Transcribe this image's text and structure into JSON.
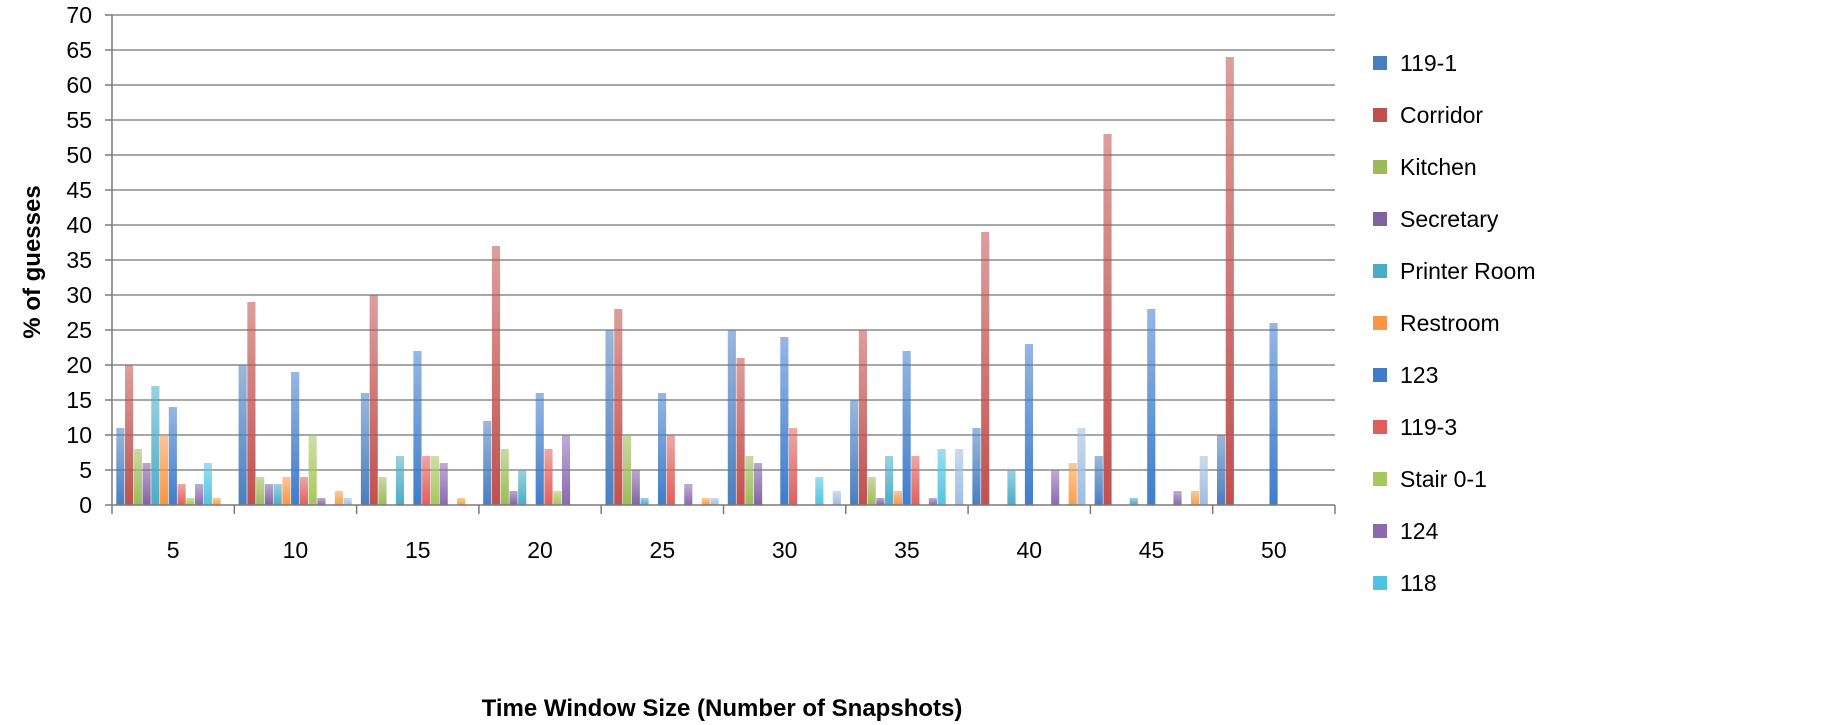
{
  "chart_data": {
    "type": "bar",
    "title": "",
    "xlabel": "Time Window Size (Number of Snapshots)",
    "ylabel": "% of guesses",
    "ylim": [
      0,
      70
    ],
    "yticks": [
      0,
      5,
      10,
      15,
      20,
      25,
      30,
      35,
      40,
      45,
      50,
      55,
      60,
      65,
      70
    ],
    "grid": true,
    "legend_position": "right",
    "categories": [
      "5",
      "10",
      "15",
      "20",
      "25",
      "30",
      "35",
      "40",
      "45",
      "50"
    ],
    "series": [
      {
        "name": "119-1",
        "color": "#4a7ebf",
        "values": [
          11,
          20,
          16,
          12,
          25,
          25,
          15,
          11,
          7,
          10
        ]
      },
      {
        "name": "Corridor",
        "color": "#c0504d",
        "values": [
          20,
          29,
          30,
          37,
          28,
          21,
          25,
          39,
          53,
          64
        ]
      },
      {
        "name": "Kitchen",
        "color": "#9bbb59",
        "values": [
          8,
          4,
          4,
          8,
          10,
          7,
          4,
          0,
          0,
          0
        ]
      },
      {
        "name": "Secretary",
        "color": "#8064a2",
        "values": [
          6,
          3,
          0,
          2,
          5,
          6,
          1,
          0,
          0,
          0
        ]
      },
      {
        "name": "Printer Room",
        "color": "#4bacc6",
        "values": [
          17,
          3,
          7,
          5,
          1,
          0,
          7,
          5,
          1,
          0
        ]
      },
      {
        "name": "Restroom",
        "color": "#f79646",
        "values": [
          10,
          4,
          0,
          0,
          0,
          0,
          2,
          0,
          0,
          0
        ]
      },
      {
        "name": "123",
        "color": "#3f7ccb",
        "values": [
          14,
          19,
          22,
          16,
          16,
          24,
          22,
          23,
          28,
          26
        ]
      },
      {
        "name": "119-3",
        "color": "#e05f5a",
        "values": [
          3,
          4,
          7,
          8,
          10,
          11,
          7,
          0,
          0,
          0
        ]
      },
      {
        "name": "Stair 0-1",
        "color": "#a5c75b",
        "values": [
          1,
          10,
          7,
          2,
          0,
          0,
          0,
          0,
          0,
          0
        ]
      },
      {
        "name": "124",
        "color": "#8a6aaf",
        "values": [
          3,
          1,
          6,
          10,
          3,
          0,
          1,
          5,
          2,
          0
        ]
      },
      {
        "name": "118",
        "color": "#4fc4e0",
        "values": [
          6,
          0,
          0,
          0,
          0,
          4,
          8,
          0,
          0,
          0
        ]
      },
      {
        "name": "",
        "color": "#f5a04a",
        "values": [
          1,
          2,
          1,
          0,
          1,
          0,
          0,
          6,
          2,
          0
        ]
      },
      {
        "name": "",
        "color": "#9fbde0",
        "values": [
          0,
          1,
          0,
          0,
          1,
          2,
          8,
          11,
          7,
          0
        ]
      }
    ]
  }
}
